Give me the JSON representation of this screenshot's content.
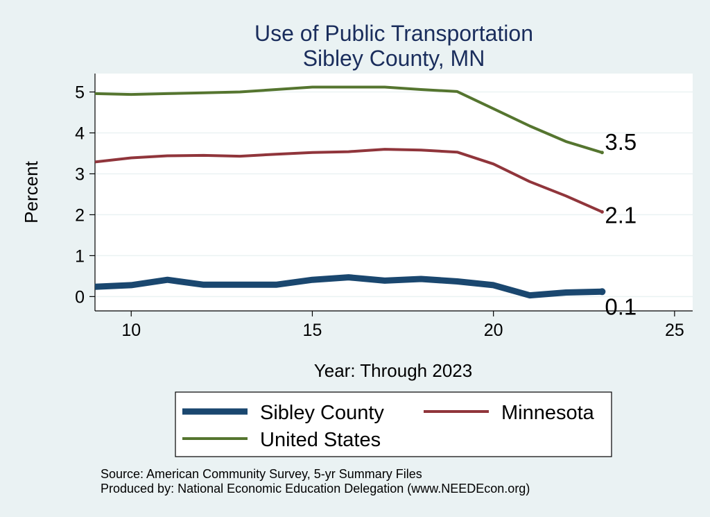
{
  "chart_data": {
    "type": "line",
    "title": "Use of Public Transportation",
    "subtitle": "Sibley County, MN",
    "xlabel": "Year: Through 2023",
    "ylabel": "Percent",
    "xlim": [
      9,
      25.5
    ],
    "ylim": [
      -0.35,
      5.45
    ],
    "xticks": [
      10,
      15,
      20,
      25
    ],
    "yticks": [
      0,
      1,
      2,
      3,
      4,
      5
    ],
    "grid": true,
    "legend_position": "bottom",
    "x": [
      9,
      10,
      11,
      12,
      13,
      14,
      15,
      16,
      17,
      18,
      19,
      20,
      21,
      22,
      23
    ],
    "series": [
      {
        "name": "Sibley County",
        "color": "#1a476f",
        "values": [
          0.24,
          0.28,
          0.41,
          0.29,
          0.29,
          0.29,
          0.41,
          0.47,
          0.39,
          0.43,
          0.37,
          0.28,
          0.03,
          0.1,
          0.12
        ],
        "end_label": "0.1"
      },
      {
        "name": "Minnesota",
        "color": "#90353b",
        "values": [
          3.29,
          3.39,
          3.44,
          3.45,
          3.43,
          3.48,
          3.52,
          3.54,
          3.6,
          3.58,
          3.53,
          3.24,
          2.81,
          2.46,
          2.07
        ],
        "end_label": "2.1"
      },
      {
        "name": "United States",
        "color": "#55752f",
        "values": [
          4.96,
          4.94,
          4.96,
          4.98,
          5.0,
          5.06,
          5.12,
          5.12,
          5.12,
          5.06,
          5.01,
          4.59,
          4.17,
          3.79,
          3.52
        ],
        "end_label": "3.5"
      }
    ]
  },
  "notes": {
    "source": "Source: American Community Survey, 5-yr Summary Files",
    "producer": "Produced by: National Economic Education Delegation (www.NEEDEcon.org)"
  }
}
